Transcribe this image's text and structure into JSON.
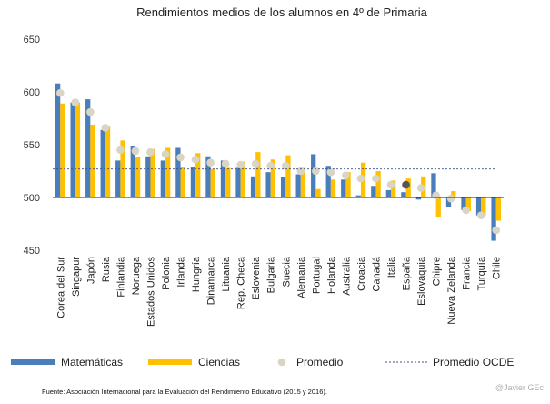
{
  "chart_data": {
    "type": "bar",
    "title": "Rendimientos medios  de los alumnos en 4º de Primaria",
    "ylim": [
      450,
      650
    ],
    "yticks": [
      450,
      500,
      550,
      600,
      650
    ],
    "baseline": 500,
    "oecd_average": 527,
    "categories": [
      "Corea del Sur",
      "Singapur",
      "Japón",
      "Rusia",
      "Finlandia",
      "Noruega",
      "Estados Unidos",
      "Polonia",
      "Irlanda",
      "Hungría",
      "Dinamarca",
      "Lituania",
      "Rep. Checa",
      "Eslovenia",
      "Bulgaria",
      "Suecia",
      "Alemania",
      "Portugal",
      "Holanda",
      "Australia",
      "Croacia",
      "Canadá",
      "Italia",
      "España",
      "Eslovaquia",
      "Chipre",
      "Nueva Zelanda",
      "Francia",
      "Turquía",
      "Chile"
    ],
    "series": [
      {
        "name": "Matemáticas",
        "color": "#4a7ebb",
        "values": [
          608,
          590,
          593,
          564,
          535,
          549,
          539,
          535,
          547,
          529,
          539,
          535,
          528,
          520,
          524,
          519,
          522,
          541,
          530,
          517,
          502,
          511,
          507,
          505,
          498,
          523,
          491,
          488,
          483,
          459
        ]
      },
      {
        "name": "Ciencias",
        "color": "#ffc000",
        "values": [
          589,
          590,
          569,
          567,
          554,
          538,
          546,
          547,
          529,
          542,
          527,
          528,
          534,
          543,
          536,
          540,
          528,
          508,
          517,
          524,
          533,
          525,
          516,
          518,
          520,
          481,
          506,
          487,
          483,
          478
        ]
      },
      {
        "name": "Promedio",
        "color": "#d9d4c4",
        "values": [
          599,
          590,
          581,
          566,
          545,
          544,
          543,
          541,
          538,
          536,
          533,
          532,
          531,
          532,
          530,
          530,
          525,
          525,
          524,
          521,
          518,
          518,
          512,
          512,
          509,
          502,
          499,
          488,
          483,
          469
        ],
        "highlight_index": 23,
        "highlight_color": "#555555"
      },
      {
        "name": "Promedio OCDE",
        "color": "#3c4f86",
        "style": "dashed"
      }
    ]
  },
  "footer": {
    "source": "Fuente:  Asociación Internacional para la Evaluación del Rendimiento Educativo (2015 y 2016).",
    "credit": "@Javier GEc"
  }
}
